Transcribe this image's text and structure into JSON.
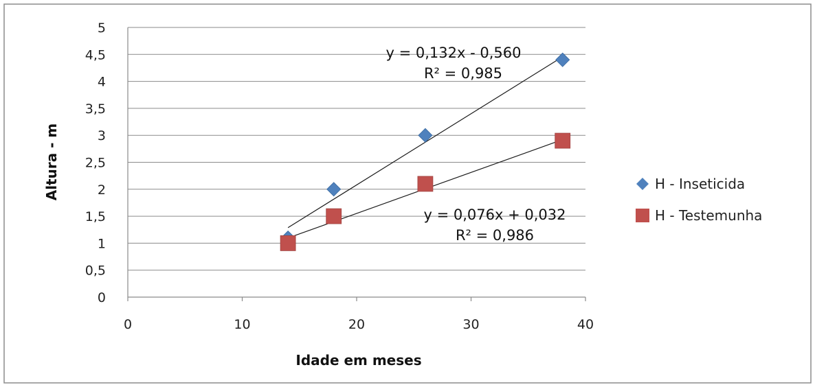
{
  "chart_data": {
    "type": "scatter",
    "xlabel": "Idade em meses",
    "ylabel": "Altura - m",
    "xlim": [
      0,
      40
    ],
    "ylim": [
      0,
      5
    ],
    "x_ticks": [
      "0",
      "10",
      "20",
      "30",
      "40"
    ],
    "y_ticks": [
      "0",
      "0,5",
      "1",
      "1,5",
      "2",
      "2,5",
      "3",
      "3,5",
      "4",
      "4,5",
      "5"
    ],
    "grid": "horizontal",
    "legend_position": "right",
    "series": [
      {
        "name": "H - Inseticida",
        "marker": "diamond",
        "color": "#4F81BD",
        "x": [
          14,
          18,
          26,
          38
        ],
        "y": [
          1.1,
          2.0,
          3.0,
          4.4
        ],
        "trendline": {
          "slope": 0.132,
          "intercept": -0.56,
          "x_range": [
            14,
            38
          ],
          "equation": "y = 0,132x - 0,560",
          "r2": "R² = 0,985"
        }
      },
      {
        "name": "H - Testemunha",
        "marker": "square",
        "color": "#C0504D",
        "x": [
          14,
          18,
          26,
          38
        ],
        "y": [
          1.0,
          1.5,
          2.1,
          2.9
        ],
        "trendline": {
          "slope": 0.076,
          "intercept": 0.032,
          "x_range": [
            14,
            38
          ],
          "equation": "y = 0,076x + 0,032",
          "r2": "R² = 0,986"
        }
      }
    ]
  }
}
